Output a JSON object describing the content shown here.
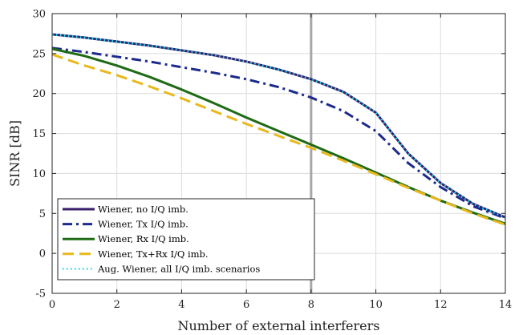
{
  "chart_data": {
    "type": "line",
    "xlabel": "Number of external interferers",
    "ylabel": "SINR [dB]",
    "xlim": [
      0,
      14
    ],
    "ylim": [
      -5,
      30
    ],
    "x_ticks": [
      0,
      2,
      4,
      6,
      8,
      10,
      12,
      14
    ],
    "y_ticks": [
      -5,
      0,
      5,
      10,
      15,
      20,
      25,
      30
    ],
    "x_tick_labels": [
      "0",
      "2",
      "4",
      "6",
      "8",
      "10",
      "12",
      "14"
    ],
    "y_tick_labels": [
      "-5",
      "0",
      "5",
      "10",
      "15",
      "20",
      "25",
      "30"
    ],
    "grid": true,
    "legend_position": "bottom-left",
    "reference_line": {
      "x": 8,
      "color": "#a6a6a6"
    },
    "x": [
      0,
      1,
      2,
      3,
      4,
      5,
      6,
      7,
      8,
      9,
      10,
      11,
      12,
      13,
      14
    ],
    "series": [
      {
        "name": "Wiener, no I/Q imb.",
        "color": "#3b1f6b",
        "dash": "solid",
        "values": [
          27.4,
          27.0,
          26.5,
          26.0,
          25.4,
          24.8,
          24.0,
          23.0,
          21.8,
          20.2,
          17.6,
          12.5,
          8.8,
          6.2,
          4.5
        ]
      },
      {
        "name": "Wiener, Tx I/Q imb.",
        "color": "#1b2a8c",
        "dash": "dashdot",
        "values": [
          25.7,
          25.2,
          24.6,
          24.0,
          23.3,
          22.6,
          21.8,
          20.8,
          19.5,
          17.8,
          15.3,
          11.3,
          8.3,
          5.9,
          4.4
        ]
      },
      {
        "name": "Wiener, Rx I/Q imb.",
        "color": "#1f6b15",
        "dash": "solid",
        "values": [
          25.6,
          24.7,
          23.5,
          22.1,
          20.5,
          18.8,
          17.0,
          15.3,
          13.6,
          11.9,
          10.1,
          8.3,
          6.6,
          5.1,
          3.7
        ]
      },
      {
        "name": "Wiener, Tx+Rx I/Q imb.",
        "color": "#e8b81c",
        "dash": "dashed",
        "values": [
          24.9,
          23.5,
          22.3,
          20.9,
          19.4,
          17.8,
          16.2,
          14.7,
          13.2,
          11.6,
          9.9,
          8.2,
          6.6,
          5.0,
          3.6
        ]
      },
      {
        "name": "Aug. Wiener, all I/Q imb. scenarios",
        "color": "#17e3ee",
        "dash": "dotted",
        "values": [
          27.4,
          27.0,
          26.5,
          26.0,
          25.4,
          24.8,
          24.0,
          23.0,
          21.8,
          20.2,
          17.6,
          12.5,
          8.8,
          6.2,
          4.5
        ]
      }
    ]
  }
}
